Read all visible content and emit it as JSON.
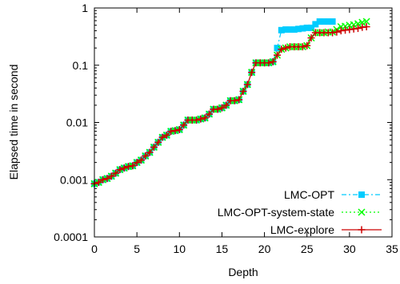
{
  "chart_data": {
    "type": "line",
    "title": "",
    "xlabel": "Depth",
    "ylabel": "Elapsed time in second",
    "xlim": [
      0,
      35
    ],
    "ylim": [
      0.0001,
      1
    ],
    "yscale": "log",
    "x_ticks": [
      0,
      5,
      10,
      15,
      20,
      25,
      30,
      35
    ],
    "x_tick_labels": [
      "0",
      "5",
      "10",
      "15",
      "20",
      "25",
      "30",
      "35"
    ],
    "y_ticks": [
      0.0001,
      0.001,
      0.01,
      0.1,
      1
    ],
    "y_tick_labels": [
      "0.0001",
      "0.001",
      "0.01",
      "0.1",
      "1"
    ],
    "grid": false,
    "legend_position": "bottom-right",
    "series": [
      {
        "name": "LMC-OPT",
        "color": "#00ccff",
        "marker": "square",
        "line_style": "dash-dot",
        "x": [
          0,
          0.5,
          1,
          1.5,
          2,
          2.5,
          3,
          3.5,
          4,
          4.5,
          5,
          5.5,
          6,
          6.5,
          7,
          7.5,
          8,
          8.5,
          9,
          9.5,
          10,
          10.5,
          11,
          11.5,
          12,
          12.5,
          13,
          13.5,
          14,
          14.5,
          15,
          15.5,
          16,
          16.5,
          17,
          17.5,
          18,
          18.5,
          19,
          19.5,
          20,
          20.5,
          21,
          21.5,
          22,
          22.5,
          23,
          23.5,
          24,
          24.5,
          25,
          25.5,
          26,
          26.5,
          27,
          27.5,
          28
        ],
        "y": [
          0.00085,
          0.0009,
          0.001,
          0.00105,
          0.00115,
          0.0013,
          0.0015,
          0.0016,
          0.0017,
          0.00175,
          0.002,
          0.0022,
          0.0026,
          0.003,
          0.0037,
          0.0045,
          0.0055,
          0.006,
          0.007,
          0.0072,
          0.0075,
          0.009,
          0.011,
          0.011,
          0.011,
          0.0115,
          0.012,
          0.014,
          0.017,
          0.017,
          0.018,
          0.02,
          0.024,
          0.024,
          0.025,
          0.035,
          0.046,
          0.075,
          0.11,
          0.11,
          0.11,
          0.11,
          0.115,
          0.2,
          0.41,
          0.42,
          0.42,
          0.42,
          0.43,
          0.44,
          0.45,
          0.45,
          0.52,
          0.58,
          0.58,
          0.58,
          0.58
        ]
      },
      {
        "name": "LMC-OPT-system-state",
        "color": "#00ff00",
        "marker": "x",
        "line_style": "dotted",
        "x": [
          0,
          0.5,
          1,
          1.5,
          2,
          2.5,
          3,
          3.5,
          4,
          4.5,
          5,
          5.5,
          6,
          6.5,
          7,
          7.5,
          8,
          8.5,
          9,
          9.5,
          10,
          10.5,
          11,
          11.5,
          12,
          12.5,
          13,
          13.5,
          14,
          14.5,
          15,
          15.5,
          16,
          16.5,
          17,
          17.5,
          18,
          18.5,
          19,
          19.5,
          20,
          20.5,
          21,
          21.5,
          22,
          22.5,
          23,
          23.5,
          24,
          24.5,
          25,
          25.5,
          26,
          26.5,
          27,
          27.5,
          28,
          28.5,
          29,
          29.5,
          30,
          30.5,
          31,
          31.5,
          32
        ],
        "y": [
          0.00085,
          0.0009,
          0.001,
          0.00105,
          0.00115,
          0.0013,
          0.0015,
          0.0016,
          0.0017,
          0.00175,
          0.002,
          0.0022,
          0.0026,
          0.003,
          0.0037,
          0.0045,
          0.0055,
          0.006,
          0.007,
          0.0072,
          0.0075,
          0.009,
          0.011,
          0.011,
          0.011,
          0.0115,
          0.012,
          0.014,
          0.017,
          0.017,
          0.018,
          0.02,
          0.024,
          0.024,
          0.025,
          0.035,
          0.046,
          0.075,
          0.11,
          0.11,
          0.11,
          0.11,
          0.115,
          0.15,
          0.19,
          0.2,
          0.21,
          0.21,
          0.21,
          0.21,
          0.22,
          0.3,
          0.37,
          0.37,
          0.37,
          0.38,
          0.38,
          0.42,
          0.47,
          0.48,
          0.5,
          0.51,
          0.53,
          0.56,
          0.58
        ]
      },
      {
        "name": "LMC-explore",
        "color": "#cc0000",
        "marker": "plus",
        "line_style": "solid",
        "x": [
          0,
          0.5,
          1,
          1.5,
          2,
          2.5,
          3,
          3.5,
          4,
          4.5,
          5,
          5.5,
          6,
          6.5,
          7,
          7.5,
          8,
          8.5,
          9,
          9.5,
          10,
          10.5,
          11,
          11.5,
          12,
          12.5,
          13,
          13.5,
          14,
          14.5,
          15,
          15.5,
          16,
          16.5,
          17,
          17.5,
          18,
          18.5,
          19,
          19.5,
          20,
          20.5,
          21,
          21.5,
          22,
          22.5,
          23,
          23.5,
          24,
          24.5,
          25,
          25.5,
          26,
          26.5,
          27,
          27.5,
          28,
          28.5,
          29,
          29.5,
          30,
          30.5,
          31,
          31.5,
          32
        ],
        "y": [
          0.00085,
          0.0009,
          0.001,
          0.00105,
          0.00115,
          0.0013,
          0.0015,
          0.0016,
          0.0017,
          0.00175,
          0.002,
          0.0022,
          0.0026,
          0.003,
          0.0037,
          0.0045,
          0.0055,
          0.006,
          0.007,
          0.0072,
          0.0075,
          0.009,
          0.011,
          0.011,
          0.011,
          0.0115,
          0.012,
          0.014,
          0.017,
          0.017,
          0.018,
          0.02,
          0.024,
          0.024,
          0.025,
          0.035,
          0.046,
          0.075,
          0.11,
          0.11,
          0.11,
          0.11,
          0.115,
          0.15,
          0.19,
          0.2,
          0.21,
          0.21,
          0.21,
          0.21,
          0.22,
          0.3,
          0.37,
          0.37,
          0.37,
          0.37,
          0.37,
          0.38,
          0.4,
          0.41,
          0.42,
          0.43,
          0.44,
          0.46,
          0.47
        ]
      }
    ]
  }
}
